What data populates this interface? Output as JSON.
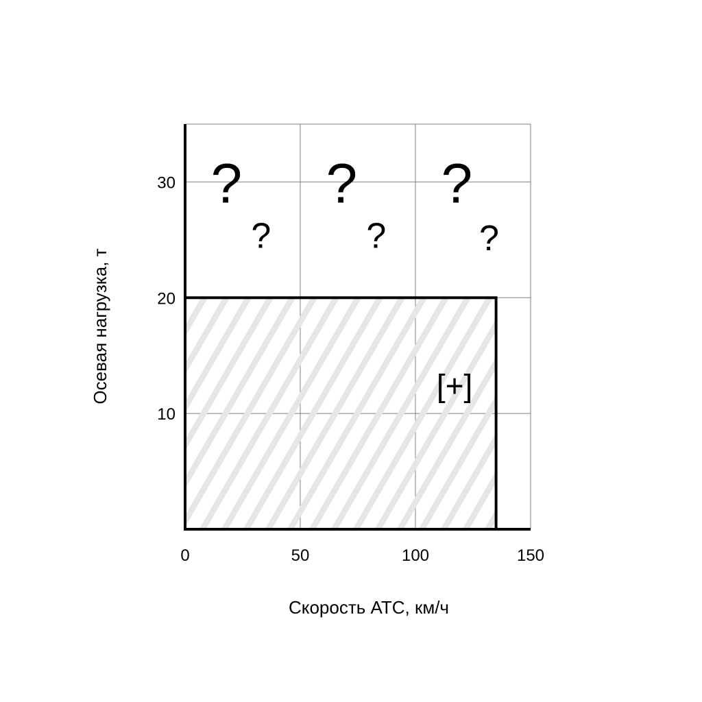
{
  "chart_data": {
    "type": "area",
    "xlabel": "Скорость АТС, км/ч",
    "ylabel": "Осевая нагрузка, т",
    "xlim": [
      0,
      150
    ],
    "ylim": [
      0,
      35
    ],
    "xticks": [
      0,
      50,
      100,
      150
    ],
    "yticks": [
      10,
      20,
      30
    ],
    "xtick_labels": [
      "0",
      "50",
      "100",
      "150"
    ],
    "ytick_labels": [
      "10",
      "20",
      "30"
    ],
    "grid": true,
    "region": {
      "x": [
        0,
        135
      ],
      "y": [
        0,
        20
      ],
      "fill": "hatched",
      "label": "[+]",
      "label_pos": [
        117,
        12.4
      ]
    },
    "annotations": [
      {
        "text": "?",
        "x": 18,
        "y": 30,
        "size": "large"
      },
      {
        "text": "?",
        "x": 68,
        "y": 30,
        "size": "large"
      },
      {
        "text": "?",
        "x": 118,
        "y": 30,
        "size": "large"
      },
      {
        "text": "?",
        "x": 33,
        "y": 25.5,
        "size": "small"
      },
      {
        "text": "?",
        "x": 83,
        "y": 25.5,
        "size": "small"
      },
      {
        "text": "?",
        "x": 132,
        "y": 25.3,
        "size": "small"
      }
    ],
    "colors": {
      "axis": "#000000",
      "grid": "#808080",
      "hatch": "#e6e6e6"
    }
  }
}
